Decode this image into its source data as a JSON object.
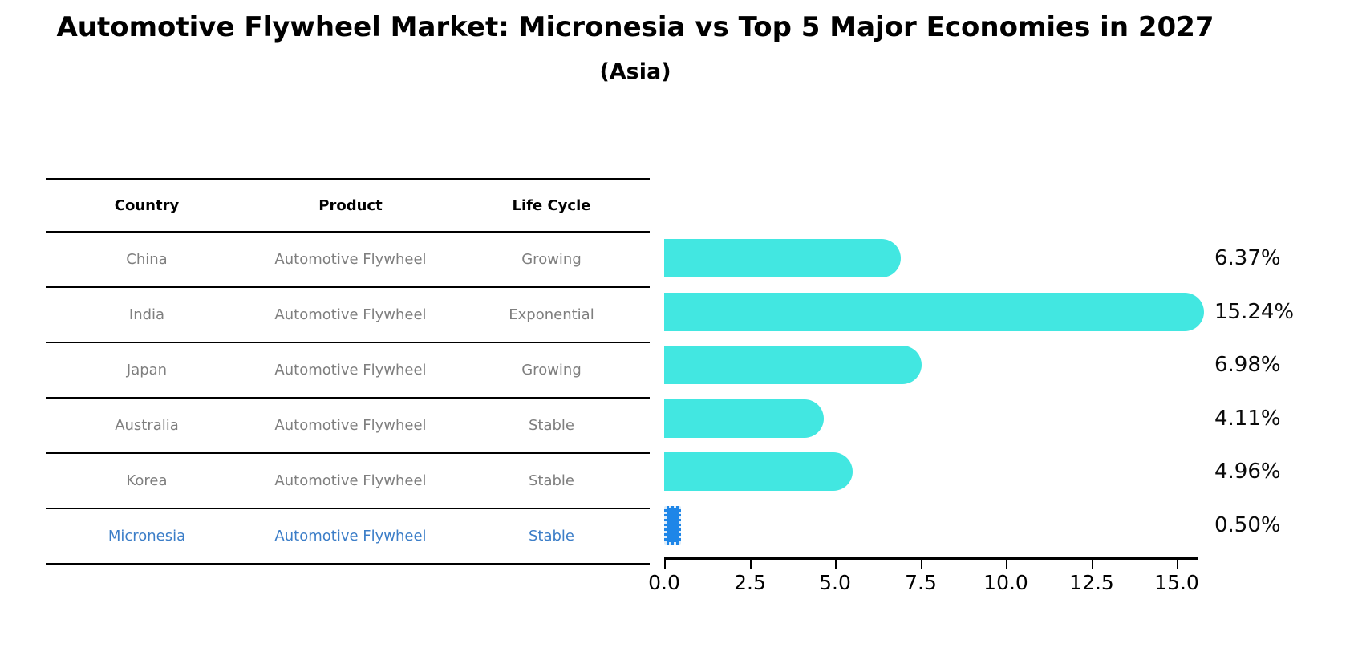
{
  "chart": {
    "title": "Automotive Flywheel Market: Micronesia vs Top 5 Major Economies in 2027",
    "subtitle": "(Asia)"
  },
  "table": {
    "headers": [
      "Country",
      "Product",
      "Life Cycle"
    ],
    "rows": [
      {
        "cells": [
          "China",
          "Automotive Flywheel",
          "Growing"
        ],
        "highlight": false
      },
      {
        "cells": [
          "India",
          "Automotive Flywheel",
          "Exponential"
        ],
        "highlight": false
      },
      {
        "cells": [
          "Japan",
          "Automotive Flywheel",
          "Growing"
        ],
        "highlight": false
      },
      {
        "cells": [
          "Australia",
          "Automotive Flywheel",
          "Stable"
        ],
        "highlight": false
      },
      {
        "cells": [
          "Korea",
          "Automotive Flywheel",
          "Stable"
        ],
        "highlight": true
      },
      {
        "cells": [
          "Micronesia",
          "Automotive Flywheel",
          "Stable"
        ],
        "highlight": true
      }
    ]
  },
  "chart_data": {
    "type": "bar",
    "orientation": "horizontal",
    "title": "Automotive Flywheel Market: Micronesia vs Top 5 Major Economies in 2027",
    "subtitle": "(Asia)",
    "categories": [
      "China",
      "India",
      "Japan",
      "Australia",
      "Korea",
      "Micronesia"
    ],
    "values": [
      6.37,
      15.24,
      6.98,
      4.11,
      4.96,
      0.5
    ],
    "value_labels": [
      "6.37%",
      "15.24%",
      "6.98%",
      "4.11%",
      "4.96%",
      "0.50%"
    ],
    "highlight_index": 5,
    "bar_color": "#42e7e1",
    "highlight_color": "#1e86e8",
    "xticks": [
      0.0,
      2.5,
      5.0,
      7.5,
      10.0,
      12.5,
      15.0
    ],
    "xtick_labels": [
      "0.0",
      "2.5",
      "5.0",
      "7.5",
      "10.0",
      "12.5",
      "15.0"
    ],
    "xlim": [
      0,
      15.65
    ],
    "grid": false,
    "legend": false
  }
}
